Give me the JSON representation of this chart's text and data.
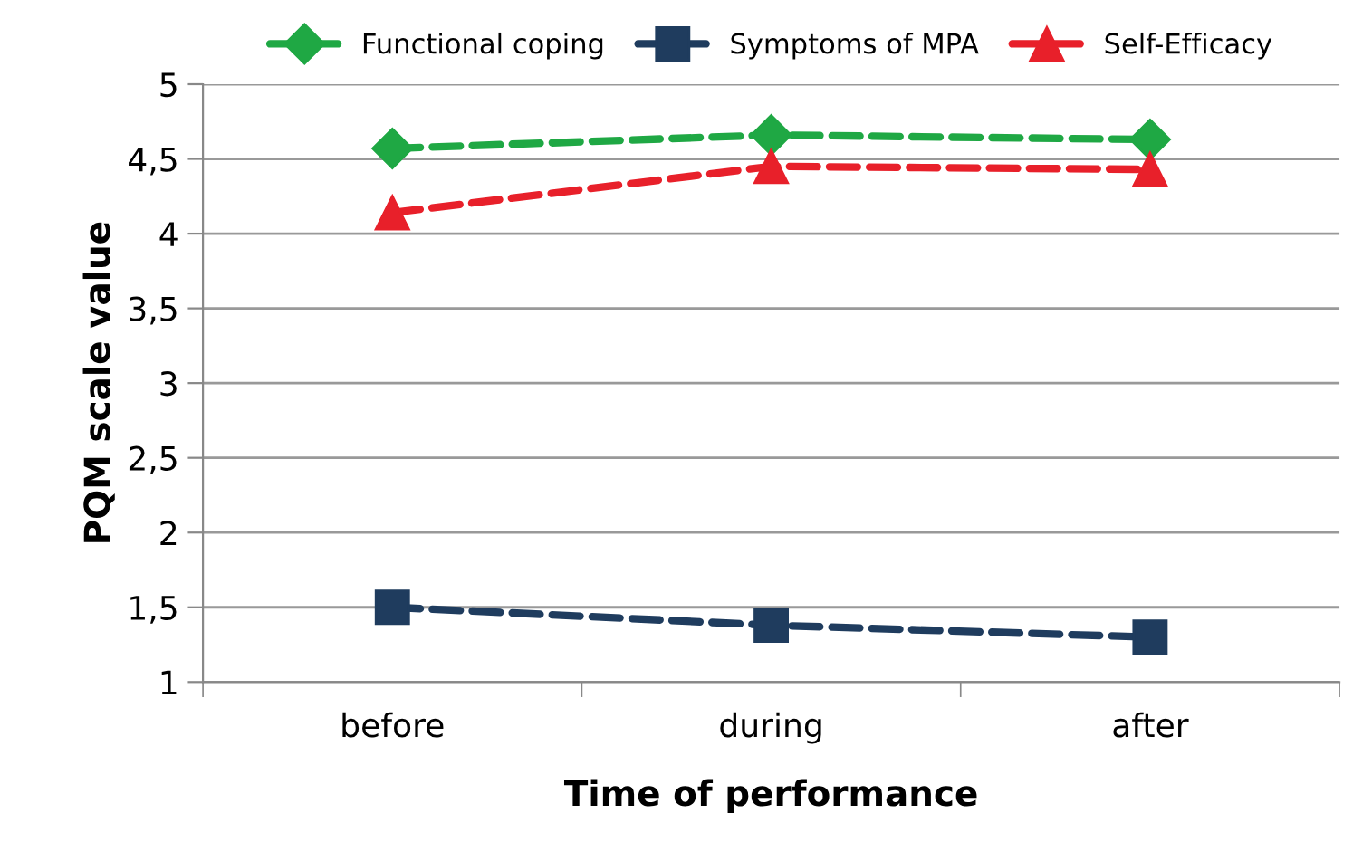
{
  "chart_data": {
    "type": "line",
    "xlabel": "Time of performance",
    "ylabel": "PQM scale value",
    "categories": [
      "before",
      "during",
      "after"
    ],
    "series": [
      {
        "name": "Functional coping",
        "color": "#1fa844",
        "marker": "diamond",
        "values": [
          4.57,
          4.66,
          4.63
        ]
      },
      {
        "name": "Symptoms of MPA",
        "color": "#1f3c5e",
        "marker": "square",
        "values": [
          1.5,
          1.38,
          1.3
        ]
      },
      {
        "name": "Self-Efficacy",
        "color": "#e8202a",
        "marker": "triangle",
        "values": [
          4.14,
          4.45,
          4.43
        ]
      }
    ],
    "ylim": [
      1,
      5
    ],
    "yticks": [
      {
        "value": 1,
        "label": "1"
      },
      {
        "value": 1.5,
        "label": "1,5"
      },
      {
        "value": 2,
        "label": "2"
      },
      {
        "value": 2.5,
        "label": "2,5"
      },
      {
        "value": 3,
        "label": "3"
      },
      {
        "value": 3.5,
        "label": "3,5"
      },
      {
        "value": 4,
        "label": "4"
      },
      {
        "value": 4.5,
        "label": "4,5"
      },
      {
        "value": 5,
        "label": "5"
      }
    ],
    "grid": "y",
    "legend": "top",
    "line_style": "dashed"
  }
}
